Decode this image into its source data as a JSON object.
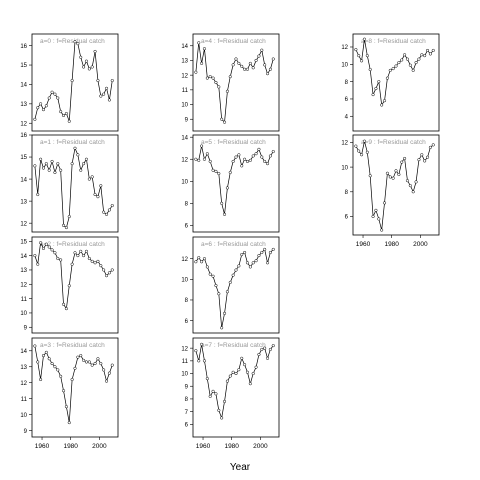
{
  "chart_data": {
    "type": "scatter",
    "xlabel": "Year",
    "panels": [
      {
        "title": "a=0 : f=Residual catch",
        "ylim": [
          11.6,
          16.6
        ],
        "yticks": [
          12,
          13,
          14,
          15,
          16
        ],
        "xticks": [],
        "x": [
          1955,
          1957,
          1959,
          1961,
          1963,
          1965,
          1967,
          1969,
          1971,
          1973,
          1975,
          1977,
          1979,
          1981,
          1983,
          1985,
          1987,
          1989,
          1991,
          1993,
          1995,
          1997,
          1999,
          2001,
          2003,
          2005,
          2007,
          2009
        ],
        "y": [
          12.2,
          12.8,
          13.0,
          12.7,
          12.9,
          13.3,
          13.6,
          13.5,
          13.3,
          12.6,
          12.4,
          12.5,
          12.1,
          14.2,
          16.2,
          16.1,
          15.4,
          14.9,
          15.2,
          14.8,
          14.9,
          15.7,
          14.2,
          13.4,
          13.5,
          13.8,
          13.2,
          14.2
        ]
      },
      {
        "title": "a=1 : f=Residual catch",
        "ylim": [
          11.6,
          16.0
        ],
        "yticks": [
          12,
          13,
          14,
          15,
          16
        ],
        "xticks": [],
        "x": [
          1955,
          1957,
          1959,
          1961,
          1963,
          1965,
          1967,
          1969,
          1971,
          1973,
          1975,
          1977,
          1979,
          1981,
          1983,
          1985,
          1987,
          1989,
          1991,
          1993,
          1995,
          1997,
          1999,
          2001,
          2003,
          2005,
          2007,
          2009
        ],
        "y": [
          14.6,
          13.3,
          14.9,
          14.5,
          14.7,
          14.4,
          14.8,
          14.3,
          14.7,
          14.4,
          11.9,
          11.8,
          12.3,
          14.7,
          15.4,
          15.1,
          14.4,
          14.7,
          14.9,
          14.0,
          14.1,
          13.3,
          13.2,
          13.7,
          12.5,
          12.4,
          12.6,
          12.8
        ]
      },
      {
        "title": "a=2 : f=Residual catch",
        "ylim": [
          8.6,
          15.3
        ],
        "yticks": [
          9,
          10,
          11,
          12,
          13,
          14,
          15
        ],
        "xticks": [],
        "x": [
          1955,
          1957,
          1959,
          1961,
          1963,
          1965,
          1967,
          1969,
          1971,
          1973,
          1975,
          1977,
          1979,
          1981,
          1983,
          1985,
          1987,
          1989,
          1991,
          1993,
          1995,
          1997,
          1999,
          2001,
          2003,
          2005,
          2007,
          2009
        ],
        "y": [
          14.0,
          13.4,
          14.9,
          14.5,
          14.8,
          14.6,
          14.4,
          14.2,
          13.8,
          13.7,
          10.6,
          10.3,
          11.9,
          13.4,
          14.2,
          14.0,
          14.3,
          14.0,
          14.3,
          13.8,
          13.6,
          13.5,
          13.6,
          13.3,
          13.0,
          12.6,
          12.8,
          13.0
        ]
      },
      {
        "title": "a=3 : f=Residual catch",
        "ylim": [
          8.6,
          14.8
        ],
        "yticks": [
          9,
          10,
          11,
          12,
          13,
          14
        ],
        "xticks": [
          1960,
          1980,
          2000
        ],
        "x": [
          1955,
          1957,
          1959,
          1961,
          1963,
          1965,
          1967,
          1969,
          1971,
          1973,
          1975,
          1977,
          1979,
          1981,
          1983,
          1985,
          1987,
          1989,
          1991,
          1993,
          1995,
          1997,
          1999,
          2001,
          2003,
          2005,
          2007,
          2009
        ],
        "y": [
          14.3,
          13.3,
          12.2,
          13.7,
          13.9,
          13.5,
          13.2,
          13.0,
          12.8,
          12.4,
          11.5,
          10.5,
          9.5,
          12.2,
          12.9,
          13.6,
          13.7,
          13.4,
          13.3,
          13.3,
          13.1,
          13.2,
          13.5,
          13.2,
          12.8,
          12.1,
          12.6,
          13.1
        ]
      },
      {
        "title": "a=4 : f=Residual catch",
        "ylim": [
          8.2,
          14.8
        ],
        "yticks": [
          9,
          10,
          11,
          12,
          13,
          14
        ],
        "xticks": [],
        "x": [
          1955,
          1957,
          1959,
          1961,
          1963,
          1965,
          1967,
          1969,
          1971,
          1973,
          1975,
          1977,
          1979,
          1981,
          1983,
          1985,
          1987,
          1989,
          1991,
          1993,
          1995,
          1997,
          1999,
          2001,
          2003,
          2005,
          2007,
          2009
        ],
        "y": [
          12.2,
          14.2,
          12.8,
          13.8,
          11.8,
          11.9,
          11.8,
          11.5,
          11.2,
          9.0,
          8.8,
          10.9,
          11.9,
          12.7,
          13.1,
          12.8,
          12.6,
          12.4,
          12.4,
          12.8,
          12.5,
          13.0,
          13.3,
          13.7,
          12.7,
          12.1,
          12.4,
          13.1
        ]
      },
      {
        "title": "a=5 : f=Residual catch",
        "ylim": [
          5.4,
          14.2
        ],
        "yticks": [
          6,
          8,
          10,
          12,
          14
        ],
        "xticks": [],
        "x": [
          1955,
          1957,
          1959,
          1961,
          1963,
          1965,
          1967,
          1969,
          1971,
          1973,
          1975,
          1977,
          1979,
          1981,
          1983,
          1985,
          1987,
          1989,
          1991,
          1993,
          1995,
          1997,
          1999,
          2001,
          2003,
          2005,
          2007,
          2009
        ],
        "y": [
          12.0,
          11.9,
          13.2,
          12.0,
          12.5,
          11.8,
          11.0,
          10.9,
          10.7,
          8.0,
          7.0,
          9.4,
          10.8,
          11.8,
          12.2,
          12.4,
          11.4,
          12.0,
          11.8,
          11.9,
          12.3,
          12.5,
          12.9,
          12.2,
          11.8,
          11.6,
          12.3,
          12.7
        ]
      },
      {
        "title": "a=6 : f=Residual catch",
        "ylim": [
          4.8,
          14.1
        ],
        "yticks": [
          6,
          8,
          10,
          12
        ],
        "xticks": [],
        "x": [
          1955,
          1957,
          1959,
          1961,
          1963,
          1965,
          1967,
          1969,
          1971,
          1973,
          1975,
          1977,
          1979,
          1981,
          1983,
          1985,
          1987,
          1989,
          1991,
          1993,
          1995,
          1997,
          1999,
          2001,
          2003,
          2005,
          2007,
          2009
        ],
        "y": [
          11.7,
          12.1,
          11.7,
          12.0,
          11.2,
          10.5,
          10.3,
          9.4,
          8.6,
          5.3,
          6.7,
          8.8,
          9.7,
          10.4,
          10.9,
          11.3,
          12.4,
          12.6,
          11.6,
          11.2,
          11.6,
          11.8,
          12.3,
          12.6,
          12.9,
          11.6,
          12.6,
          12.9
        ]
      },
      {
        "title": "a=7 : f=Residual catch",
        "ylim": [
          5.0,
          12.8
        ],
        "yticks": [
          6,
          7,
          8,
          9,
          10,
          11,
          12
        ],
        "xticks": [
          1960,
          1980,
          2000
        ],
        "x": [
          1955,
          1957,
          1959,
          1961,
          1963,
          1965,
          1967,
          1969,
          1971,
          1973,
          1975,
          1977,
          1979,
          1981,
          1983,
          1985,
          1987,
          1989,
          1991,
          1993,
          1995,
          1997,
          1999,
          2001,
          2003,
          2005,
          2007,
          2009
        ],
        "y": [
          11.8,
          11.0,
          12.3,
          11.0,
          9.6,
          8.2,
          8.6,
          8.4,
          7.1,
          6.5,
          7.8,
          9.4,
          9.8,
          10.1,
          10.0,
          10.3,
          11.2,
          10.7,
          10.1,
          9.2,
          10.0,
          10.5,
          11.5,
          11.9,
          12.0,
          11.2,
          11.9,
          12.2
        ]
      },
      {
        "title": "a=8 : f=Residual catch",
        "ylim": [
          2.3,
          13.5
        ],
        "yticks": [
          4,
          6,
          8,
          10,
          12
        ],
        "xticks": [],
        "x": [
          1955,
          1957,
          1959,
          1961,
          1963,
          1965,
          1967,
          1969,
          1971,
          1973,
          1975,
          1977,
          1979,
          1981,
          1983,
          1985,
          1987,
          1989,
          1991,
          1993,
          1995,
          1997,
          1999,
          2001,
          2003,
          2005,
          2007,
          2009
        ],
        "y": [
          11.7,
          11.0,
          10.4,
          12.9,
          11.0,
          9.4,
          6.5,
          7.2,
          8.0,
          5.3,
          5.8,
          8.4,
          9.3,
          9.5,
          9.8,
          10.2,
          10.5,
          11.1,
          10.6,
          9.9,
          9.3,
          10.2,
          10.6,
          11.1,
          11.0,
          11.6,
          11.2,
          11.6
        ]
      },
      {
        "title": "a=9 : f=Residual catch",
        "ylim": [
          4.5,
          12.6
        ],
        "yticks": [
          6,
          8,
          10,
          12
        ],
        "xticks": [
          1960,
          1980,
          2000
        ],
        "x": [
          1955,
          1957,
          1959,
          1961,
          1963,
          1965,
          1967,
          1969,
          1971,
          1973,
          1975,
          1977,
          1979,
          1981,
          1983,
          1985,
          1987,
          1989,
          1991,
          1993,
          1995,
          1997,
          1999,
          2001,
          2003,
          2005,
          2007,
          2009
        ],
        "y": [
          11.7,
          11.3,
          11.0,
          12.1,
          11.2,
          9.3,
          6.0,
          6.5,
          5.8,
          4.9,
          7.1,
          9.5,
          9.2,
          9.1,
          9.7,
          9.4,
          10.4,
          10.7,
          8.9,
          8.5,
          8.0,
          8.8,
          10.6,
          11.0,
          10.5,
          10.8,
          11.6,
          11.8
        ]
      }
    ]
  }
}
